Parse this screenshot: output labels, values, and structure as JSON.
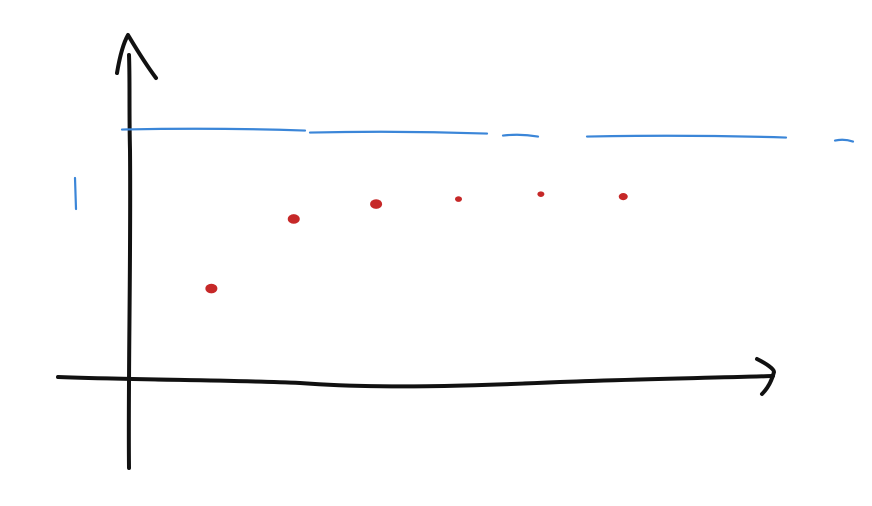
{
  "chart_data": {
    "type": "scatter",
    "title": "",
    "xlabel": "",
    "ylabel": "",
    "grid": false,
    "legend": "none",
    "series": [
      {
        "kind": "points",
        "x": [
          1,
          2,
          3,
          4,
          5,
          6
        ],
        "y": [
          0.36,
          0.64,
          0.7,
          0.72,
          0.74,
          0.73
        ]
      }
    ],
    "reference_line": {
      "y": 1,
      "style": "dashed"
    },
    "xlim": [
      0,
      8
    ],
    "ylim": [
      0,
      1.3
    ]
  },
  "colors": {
    "axes": "#111111",
    "points": "#c62828",
    "reference_line": "#3b86d8"
  }
}
